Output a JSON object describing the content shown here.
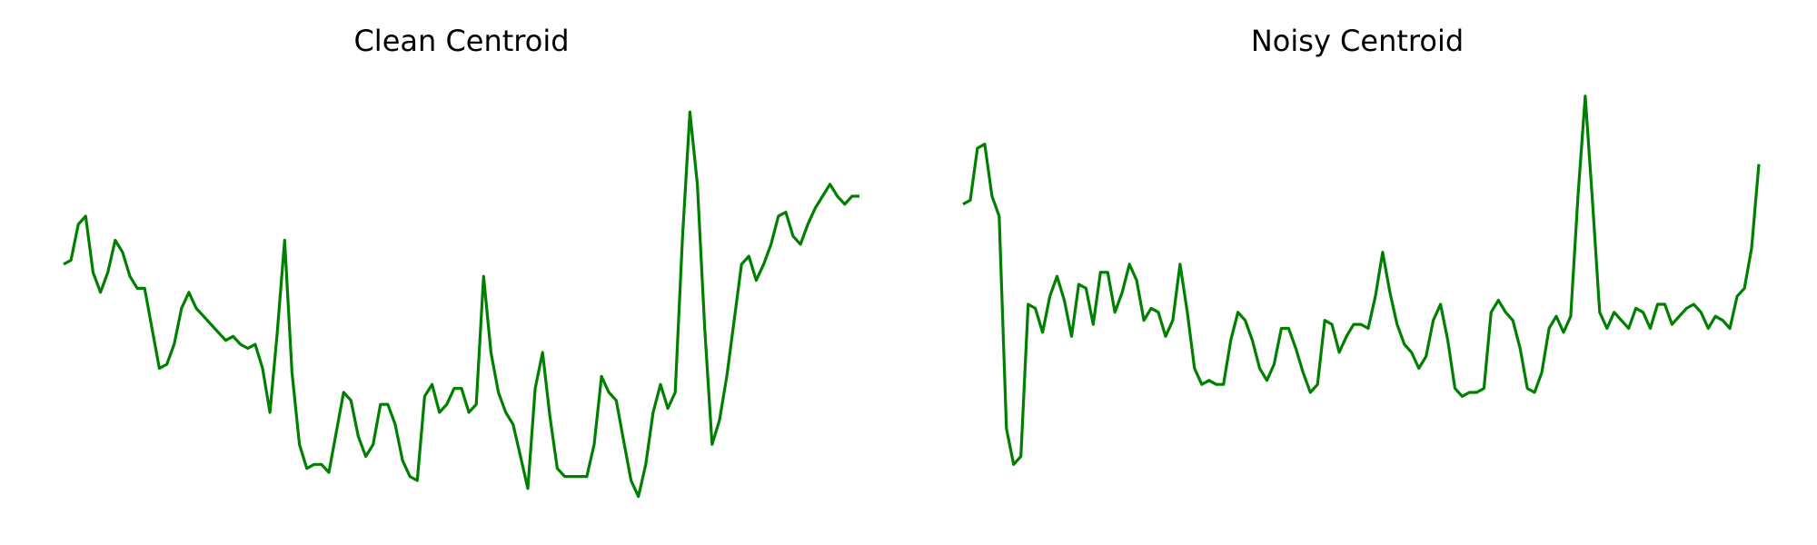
{
  "figure": {
    "background": "#ffffff",
    "line_color": "#008000"
  },
  "chart_data": [
    {
      "type": "line",
      "title": "Clean Centroid",
      "xlabel": "",
      "ylabel": "",
      "axes_visible": false,
      "grid": false,
      "ylim": [
        -0.53,
        0.5
      ],
      "series": [
        {
          "color": "#008000",
          "values": [
            0.06,
            0.07,
            0.16,
            0.18,
            0.04,
            -0.01,
            0.04,
            0.12,
            0.09,
            0.03,
            0.0,
            0.0,
            -0.1,
            -0.2,
            -0.19,
            -0.14,
            -0.05,
            -0.01,
            -0.05,
            -0.07,
            -0.09,
            -0.11,
            -0.13,
            -0.12,
            -0.14,
            -0.15,
            -0.14,
            -0.2,
            -0.31,
            -0.11,
            0.12,
            -0.21,
            -0.39,
            -0.45,
            -0.44,
            -0.44,
            -0.46,
            -0.36,
            -0.26,
            -0.28,
            -0.37,
            -0.42,
            -0.39,
            -0.29,
            -0.29,
            -0.34,
            -0.43,
            -0.47,
            -0.48,
            -0.27,
            -0.24,
            -0.31,
            -0.29,
            -0.25,
            -0.25,
            -0.31,
            -0.29,
            0.03,
            -0.16,
            -0.26,
            -0.31,
            -0.34,
            -0.42,
            -0.5,
            -0.25,
            -0.16,
            -0.32,
            -0.45,
            -0.47,
            -0.47,
            -0.47,
            -0.47,
            -0.39,
            -0.22,
            -0.26,
            -0.28,
            -0.38,
            -0.48,
            -0.52,
            -0.44,
            -0.31,
            -0.24,
            -0.3,
            -0.26,
            0.13,
            0.44,
            0.26,
            -0.1,
            -0.39,
            -0.33,
            -0.22,
            -0.08,
            0.06,
            0.08,
            0.02,
            0.06,
            0.11,
            0.18,
            0.19,
            0.13,
            0.11,
            0.16,
            0.2,
            0.23,
            0.26,
            0.23,
            0.21,
            0.23,
            0.23
          ]
        }
      ]
    },
    {
      "type": "line",
      "title": "Noisy Centroid",
      "xlabel": "",
      "ylabel": "",
      "axes_visible": false,
      "grid": false,
      "ylim": [
        -0.53,
        0.5
      ],
      "series": [
        {
          "color": "#008000",
          "values": [
            0.21,
            0.22,
            0.35,
            0.36,
            0.23,
            0.18,
            -0.35,
            -0.44,
            -0.42,
            -0.04,
            -0.05,
            -0.11,
            -0.02,
            0.03,
            -0.03,
            -0.12,
            0.01,
            0.0,
            -0.09,
            0.04,
            0.04,
            -0.06,
            -0.01,
            0.06,
            0.02,
            -0.08,
            -0.05,
            -0.06,
            -0.12,
            -0.08,
            0.06,
            -0.06,
            -0.2,
            -0.24,
            -0.23,
            -0.24,
            -0.24,
            -0.13,
            -0.06,
            -0.08,
            -0.13,
            -0.2,
            -0.23,
            -0.19,
            -0.1,
            -0.1,
            -0.15,
            -0.21,
            -0.26,
            -0.24,
            -0.08,
            -0.09,
            -0.16,
            -0.12,
            -0.09,
            -0.09,
            -0.1,
            -0.02,
            0.09,
            -0.01,
            -0.09,
            -0.14,
            -0.16,
            -0.2,
            -0.17,
            -0.08,
            -0.04,
            -0.13,
            -0.25,
            -0.27,
            -0.26,
            -0.26,
            -0.25,
            -0.06,
            -0.03,
            -0.06,
            -0.08,
            -0.15,
            -0.25,
            -0.26,
            -0.21,
            -0.1,
            -0.07,
            -0.11,
            -0.07,
            0.23,
            0.48,
            0.22,
            -0.06,
            -0.1,
            -0.06,
            -0.08,
            -0.1,
            -0.05,
            -0.06,
            -0.1,
            -0.04,
            -0.04,
            -0.09,
            -0.07,
            -0.05,
            -0.04,
            -0.06,
            -0.1,
            -0.07,
            -0.08,
            -0.1,
            -0.02,
            0.0,
            0.1,
            0.31
          ]
        }
      ]
    }
  ]
}
